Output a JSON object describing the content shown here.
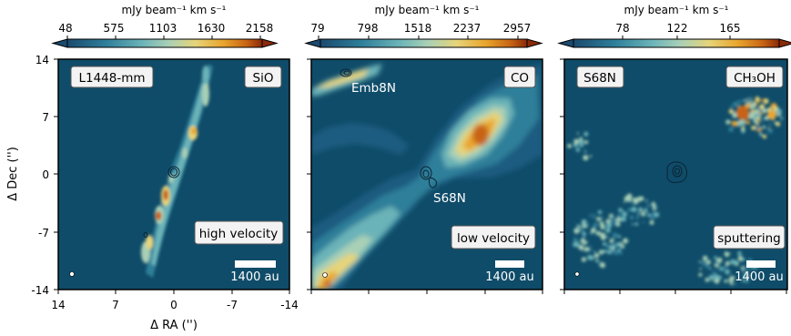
{
  "chart_data": [
    {
      "type": "heatmap",
      "colorbar": {
        "label": "mJy beam⁻¹ km s⁻¹",
        "ticks": [
          "48",
          "575",
          "1103",
          "1630",
          "2158"
        ],
        "range": [
          48,
          2500
        ]
      },
      "label_left": "L1448-mm",
      "label_right": "SiO",
      "label_bottom": "high velocity",
      "scalebar": "1400 au",
      "xlabel": "Δ RA ('')",
      "ylabel": "Δ Dec ('')",
      "xticks": [
        "14",
        "7",
        "0",
        "-7",
        "-14"
      ],
      "yticks": [
        "14",
        "7",
        "0",
        "-7",
        "-14"
      ],
      "xlim": [
        14,
        -14
      ],
      "ylim": [
        -14,
        14
      ]
    },
    {
      "type": "heatmap",
      "colorbar": {
        "label": "mJy beam⁻¹ km s⁻¹",
        "ticks": [
          "79",
          "798",
          "1518",
          "2237",
          "2957"
        ],
        "range": [
          79,
          3300
        ]
      },
      "label_right": "CO",
      "label_bottom": "low velocity",
      "annotations": [
        "Emb8N",
        "S68N"
      ],
      "scalebar": "1400 au"
    },
    {
      "type": "heatmap",
      "colorbar": {
        "label": "mJy beam⁻¹ km s⁻¹",
        "ticks": [
          "78",
          "122",
          "165"
        ],
        "range": [
          35,
          200
        ]
      },
      "label_left": "S68N",
      "label_right": "CH₃OH",
      "label_bottom": "sputtering",
      "scalebar": "1400 au"
    }
  ],
  "colors": {
    "background": "#0f4c69",
    "colormap": [
      "#1e5276",
      "#2f7f9a",
      "#6ab3b8",
      "#a9d0b6",
      "#e6d479",
      "#e8a52d",
      "#c86414",
      "#8a2a08"
    ]
  }
}
